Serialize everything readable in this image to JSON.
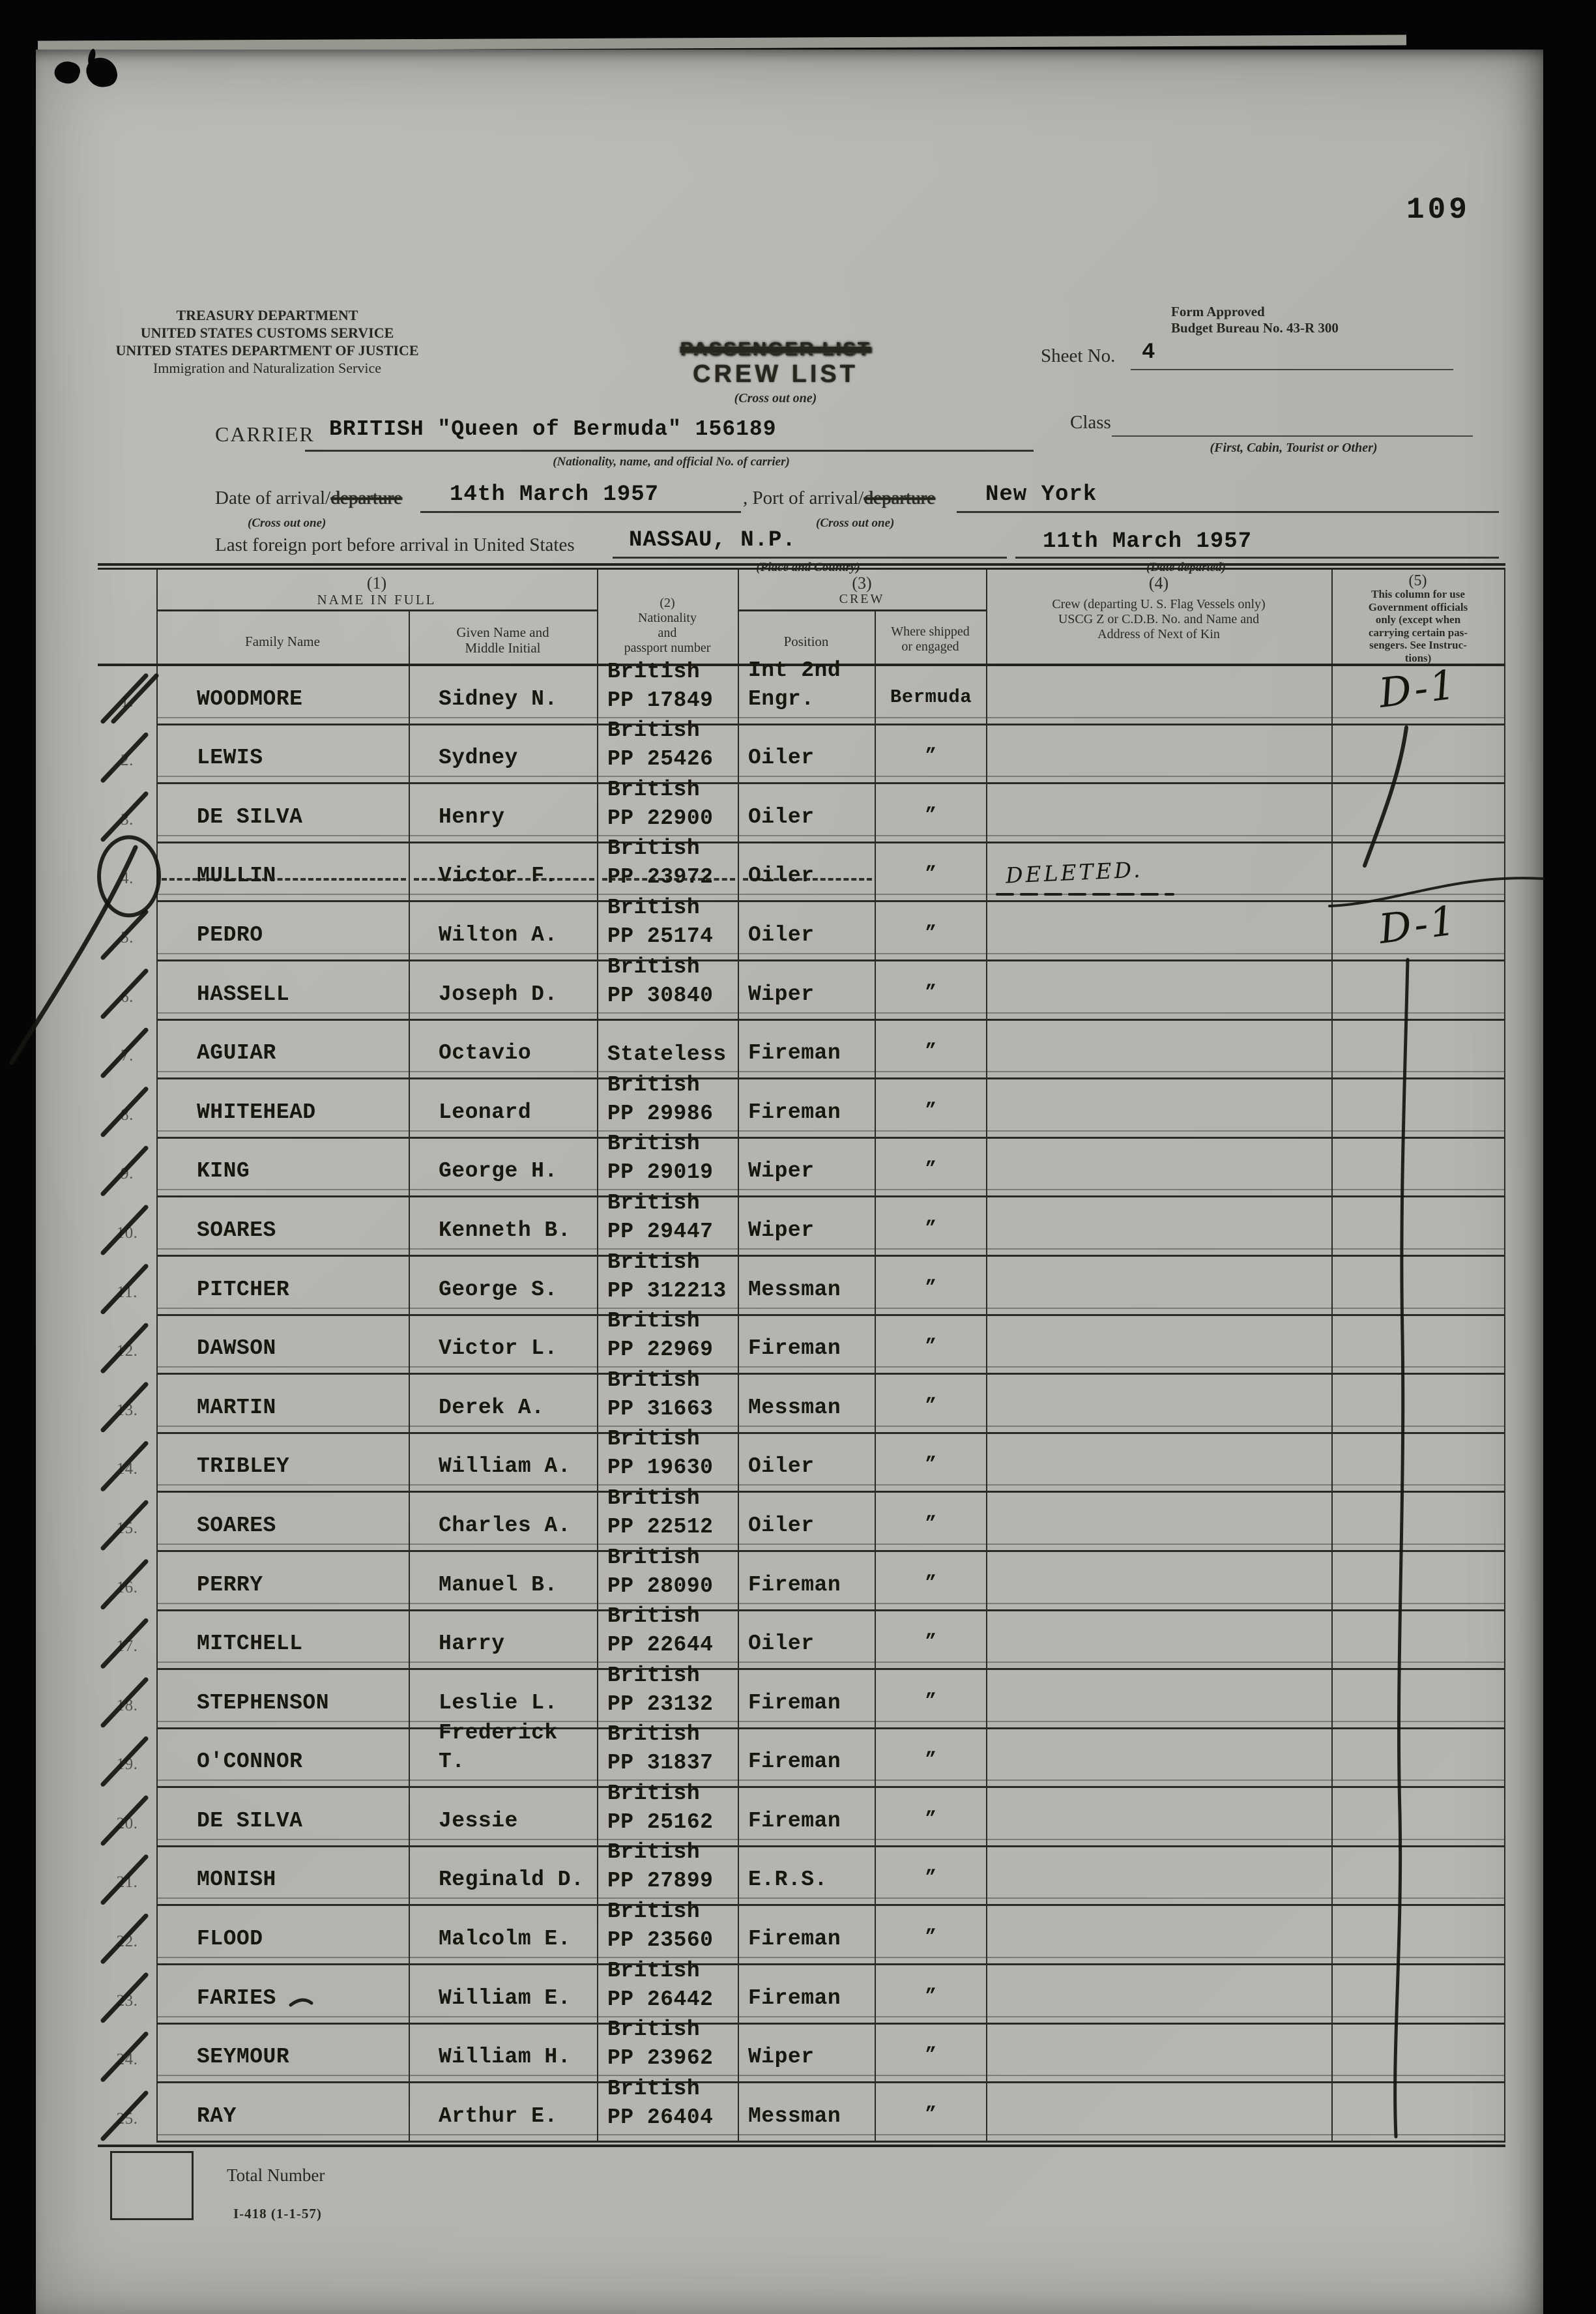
{
  "page_number": "109",
  "agency": {
    "line1": "TREASURY DEPARTMENT",
    "line2": "UNITED STATES CUSTOMS SERVICE",
    "line3": "UNITED STATES DEPARTMENT OF JUSTICE",
    "line4": "Immigration and Naturalization Service"
  },
  "form_approval": {
    "line1": "Form Approved",
    "line2": "Budget Bureau No. 43-R 300"
  },
  "stamp": {
    "passenger_list": "PASSENGER LIST",
    "crew_list": "CREW LIST",
    "cross_out_note": "(Cross out one)"
  },
  "sheet": {
    "label": "Sheet No.",
    "value": "4"
  },
  "class_field": {
    "label": "Class",
    "note": "(First, Cabin, Tourist or Other)"
  },
  "carrier": {
    "label": "CARRIER",
    "value": "BRITISH \"Queen of Bermuda\" 156189",
    "note": "(Nationality, name, and official No. of carrier)"
  },
  "arrival": {
    "date_label": "Date of arrival/",
    "date_struck": "departure",
    "date_note": "(Cross out one)",
    "date_value": "14th March 1957",
    "port_label": ", Port of arrival/",
    "port_struck": "departure",
    "port_note": "(Cross out one)",
    "port_value": "New York",
    "last_port_label": "Last foreign port before arrival in United States",
    "last_port_value": "NASSAU, N.P.",
    "last_port_note": "(Place and Country)",
    "date_departed_value": "11th March 1957",
    "date_departed_note": "(Date departed)"
  },
  "table": {
    "col1_num": "(1)",
    "col1_title": "NAME IN FULL",
    "family_header": "Family Name",
    "given_header": "Given Name and\nMiddle Initial",
    "col2_num": "(2)",
    "col2_title": "Nationality\nand\npassport number",
    "col3_num": "(3)",
    "col3_title": "CREW",
    "position_header": "Position",
    "shipped_header": "Where shipped\nor engaged",
    "col4_num": "(4)",
    "col4_title": "Crew (departing U. S. Flag Vessels only)\nUSCG Z or C.D.B. No. and Name and\nAddress of Next of Kin",
    "col5_num": "(5)",
    "col5_title": "This column for use\nGovernment officials\nonly (except when\ncarrying certain pas-\nsengers. See Instruc-\ntions)",
    "rows": [
      {
        "no": "1.",
        "family": "WOODMORE",
        "given": "Sidney N.",
        "nationality": "British\nPP 17849",
        "position": "Int 2nd\nEngr.",
        "shipped": "Bermuda",
        "col4": "",
        "col5": "D-1",
        "struck": false
      },
      {
        "no": "2.",
        "family": "LEWIS",
        "given": "Sydney",
        "nationality": "British\nPP 25426",
        "position": "Oiler",
        "shipped": "”",
        "col4": "",
        "col5": "",
        "struck": false
      },
      {
        "no": "3.",
        "family": "DE SILVA",
        "given": "Henry",
        "nationality": "British\nPP 22900",
        "position": "Oiler",
        "shipped": "”",
        "col4": "",
        "col5": "",
        "struck": false
      },
      {
        "no": "4.",
        "family": "MULLIN",
        "given": "Victor F.",
        "nationality": "British\nPP 23972",
        "position": "Oiler",
        "shipped": "”",
        "col4": "DELETED.",
        "col5": "",
        "struck": true
      },
      {
        "no": "5.",
        "family": "PEDRO",
        "given": "Wilton A.",
        "nationality": "British\nPP 25174",
        "position": "Oiler",
        "shipped": "”",
        "col4": "",
        "col5": "D-1",
        "struck": false
      },
      {
        "no": "6.",
        "family": "HASSELL",
        "given": "Joseph D.",
        "nationality": "British\nPP 30840",
        "position": "Wiper",
        "shipped": "”",
        "col4": "",
        "col5": "",
        "struck": false
      },
      {
        "no": "7.",
        "family": "AGUIAR",
        "given": "Octavio",
        "nationality": "Stateless",
        "position": "Fireman",
        "shipped": "”",
        "col4": "",
        "col5": "",
        "struck": false
      },
      {
        "no": "8.",
        "family": "WHITEHEAD",
        "given": "Leonard",
        "nationality": "British\nPP 29986",
        "position": "Fireman",
        "shipped": "”",
        "col4": "",
        "col5": "",
        "struck": false
      },
      {
        "no": "9.",
        "family": "KING",
        "given": "George H.",
        "nationality": "British\nPP 29019",
        "position": "Wiper",
        "shipped": "”",
        "col4": "",
        "col5": "",
        "struck": false
      },
      {
        "no": "10.",
        "family": "SOARES",
        "given": "Kenneth B.",
        "nationality": "British\nPP 29447",
        "position": "Wiper",
        "shipped": "”",
        "col4": "",
        "col5": "",
        "struck": false
      },
      {
        "no": "11.",
        "family": "PITCHER",
        "given": "George S.",
        "nationality": "British\nPP 312213",
        "position": "Messman",
        "shipped": "”",
        "col4": "",
        "col5": "",
        "struck": false
      },
      {
        "no": "12.",
        "family": "DAWSON",
        "given": "Victor L.",
        "nationality": "British\nPP 22969",
        "position": "Fireman",
        "shipped": "”",
        "col4": "",
        "col5": "",
        "struck": false
      },
      {
        "no": "13.",
        "family": "MARTIN",
        "given": "Derek A.",
        "nationality": "British\nPP 31663",
        "position": "Messman",
        "shipped": "”",
        "col4": "",
        "col5": "",
        "struck": false
      },
      {
        "no": "14.",
        "family": "TRIBLEY",
        "given": "William A.",
        "nationality": "British\nPP 19630",
        "position": "Oiler",
        "shipped": "”",
        "col4": "",
        "col5": "",
        "struck": false
      },
      {
        "no": "15.",
        "family": "SOARES",
        "given": "Charles A.",
        "nationality": "British\nPP 22512",
        "position": "Oiler",
        "shipped": "”",
        "col4": "",
        "col5": "",
        "struck": false
      },
      {
        "no": "16.",
        "family": "PERRY",
        "given": "Manuel B.",
        "nationality": "British\nPP 28090",
        "position": "Fireman",
        "shipped": "”",
        "col4": "",
        "col5": "",
        "struck": false
      },
      {
        "no": "17.",
        "family": "MITCHELL",
        "given": "Harry",
        "nationality": "British\nPP 22644",
        "position": "Oiler",
        "shipped": "”",
        "col4": "",
        "col5": "",
        "struck": false
      },
      {
        "no": "18.",
        "family": "STEPHENSON",
        "given": "Leslie L.",
        "nationality": "British\nPP 23132",
        "position": "Fireman",
        "shipped": "”",
        "col4": "",
        "col5": "",
        "struck": false
      },
      {
        "no": "19.",
        "family": "O'CONNOR",
        "given": "Frederick T.",
        "nationality": "British\nPP 31837",
        "position": "Fireman",
        "shipped": "”",
        "col4": "",
        "col5": "",
        "struck": false
      },
      {
        "no": "20.",
        "family": "DE SILVA",
        "given": "Jessie",
        "nationality": "British\nPP 25162",
        "position": "Fireman",
        "shipped": "”",
        "col4": "",
        "col5": "",
        "struck": false
      },
      {
        "no": "21.",
        "family": "MONISH",
        "given": "Reginald D.",
        "nationality": "British\nPP 27899",
        "position": "E.R.S.",
        "shipped": "”",
        "col4": "",
        "col5": "",
        "struck": false
      },
      {
        "no": "22.",
        "family": "FLOOD",
        "given": "Malcolm E.",
        "nationality": "British\nPP 23560",
        "position": "Fireman",
        "shipped": "”",
        "col4": "",
        "col5": "",
        "struck": false
      },
      {
        "no": "23.",
        "family": "FARIES",
        "given": "William E.",
        "nationality": "British\nPP 26442",
        "position": "Fireman",
        "shipped": "”",
        "col4": "",
        "col5": "",
        "struck": false
      },
      {
        "no": "24.",
        "family": "SEYMOUR",
        "given": "William H.",
        "nationality": "British\nPP 23962",
        "position": "Wiper",
        "shipped": "”",
        "col4": "",
        "col5": "",
        "struck": false
      },
      {
        "no": "25.",
        "family": "RAY",
        "given": "Arthur E.",
        "nationality": "British\nPP 26404",
        "position": "Messman",
        "shipped": "”",
        "col4": "",
        "col5": "",
        "struck": false
      }
    ]
  },
  "footer": {
    "total_label": "Total Number",
    "form_number": "I-418 (1-1-57)"
  }
}
